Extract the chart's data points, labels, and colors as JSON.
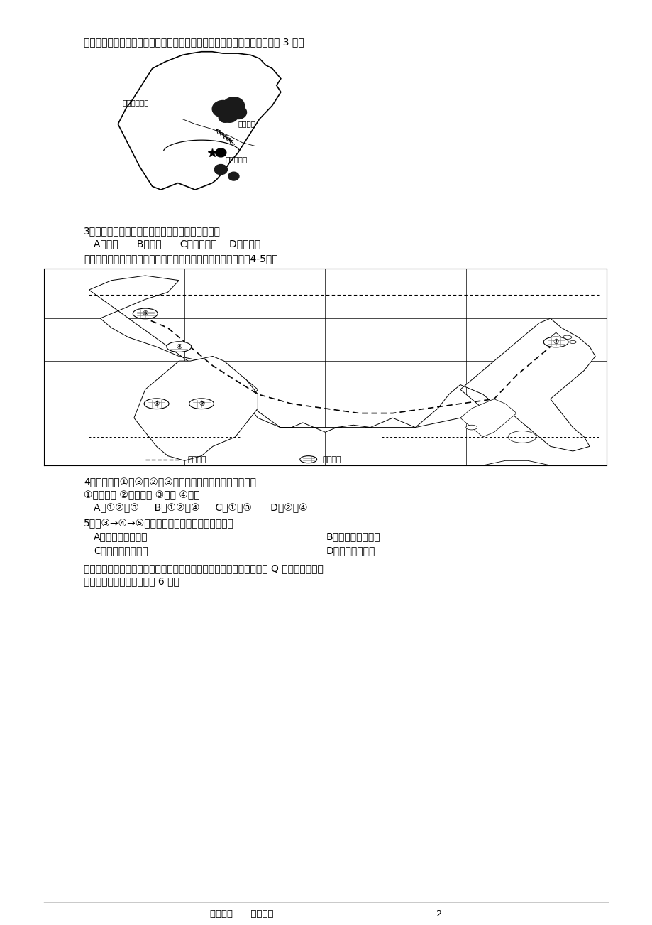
{
  "page_background": "#ffffff",
  "page_width": 9.2,
  "page_height": 13.02,
  "dpi": 100,
  "text_color": "#000000",
  "header_text": "副高西伸北进对我国锋面雨带的推移影响很大，根据图中副高的位置回答第 3 题。",
  "q3_text": "3．图中雨带的形成主要是由哪一种天气系统引起的",
  "q3_options": "A．冷锋      B．暖锋      C．准静止锋    D．反气旋",
  "q4_intro": "下图为某代表团的亚、欧、非考察路线图和活动区域，据此回答4-5题。",
  "q4_text": "4．导致沿途①和③、②和③地气候的差异的主要因素分别是",
  "q4_sub": "①太阳辐射 ②大气环流 ③地形 ④洋流",
  "q4_options": "A．①②、③     B．①②、④     C．①、③      D．②、④",
  "q5_text": "5．从③→④→⑤体现自然带水平地域分异规律的是",
  "q5_optA": "A．纬度地带性规律",
  "q5_optB": "B．经度地带性规律",
  "q5_optC": "C．垂直地带性规律",
  "q5_optD": "D．非地带性规律",
  "q6_intro": "下图为世界某区域图，图中右侧分别表示乙河流局部河谷剑面示意图和 Q 湖不同季节的蓄",
  "q6_intro2": "水面积分布图，读图回答第 6 题。",
  "footer": "实用文档      精心整理                                                      2",
  "map1_label1": "北方的冷空气",
  "map1_label2": "暖湿气候",
  "map1_label3": "副热带高压",
  "map2_legend1": "活动路线",
  "map2_legend2": "活动区域"
}
